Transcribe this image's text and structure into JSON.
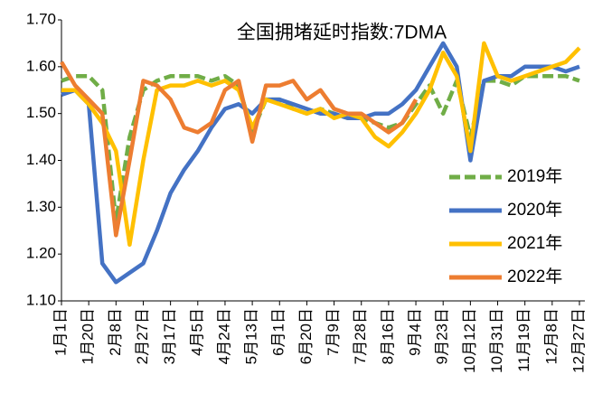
{
  "chart_data": {
    "type": "line",
    "title": "全国拥堵延时指数:7DMA",
    "categories": [
      "1月1日",
      null,
      "1月20日",
      null,
      "2月8日",
      null,
      "2月27日",
      null,
      "3月17日",
      null,
      "4月5日",
      null,
      "4月24日",
      null,
      "5月13日",
      null,
      "6月1日",
      null,
      "6月20日",
      null,
      "7月9日",
      null,
      "7月28日",
      null,
      "8月16日",
      null,
      "9月4日",
      null,
      "9月23日",
      null,
      "10月12日",
      null,
      "10月31日",
      null,
      "11月19日",
      null,
      "12月8日",
      null,
      "12月27日"
    ],
    "series": [
      {
        "name": "2019年",
        "color": "#70ad47",
        "line_style": "dashed",
        "values": [
          1.57,
          1.58,
          1.58,
          1.55,
          1.27,
          1.45,
          1.55,
          1.57,
          1.58,
          1.58,
          1.58,
          1.57,
          1.58,
          1.56,
          1.46,
          1.53,
          1.53,
          1.51,
          1.5,
          1.51,
          1.5,
          1.49,
          1.49,
          1.48,
          1.47,
          1.48,
          1.52,
          1.56,
          1.5,
          1.57,
          1.45,
          1.57,
          1.57,
          1.56,
          1.58,
          1.58,
          1.58,
          1.58,
          1.57
        ]
      },
      {
        "name": "2020年",
        "color": "#4472c4",
        "line_style": "solid",
        "values": [
          1.54,
          1.55,
          1.52,
          1.18,
          1.14,
          1.16,
          1.18,
          1.25,
          1.33,
          1.38,
          1.42,
          1.47,
          1.51,
          1.52,
          1.5,
          1.53,
          1.53,
          1.52,
          1.51,
          1.5,
          1.5,
          1.49,
          1.49,
          1.5,
          1.5,
          1.52,
          1.55,
          1.6,
          1.65,
          1.6,
          1.4,
          1.57,
          1.58,
          1.58,
          1.6,
          1.6,
          1.6,
          1.59,
          1.6
        ]
      },
      {
        "name": "2021年",
        "color": "#ffc000",
        "line_style": "solid",
        "values": [
          1.55,
          1.55,
          1.52,
          1.48,
          1.42,
          1.22,
          1.4,
          1.55,
          1.56,
          1.56,
          1.57,
          1.56,
          1.57,
          1.55,
          1.47,
          1.53,
          1.52,
          1.51,
          1.5,
          1.51,
          1.49,
          1.5,
          1.49,
          1.45,
          1.43,
          1.46,
          1.5,
          1.55,
          1.63,
          1.58,
          1.42,
          1.65,
          1.58,
          1.57,
          1.58,
          1.59,
          1.6,
          1.61,
          1.64
        ]
      },
      {
        "name": "2022年",
        "color": "#ed7d31",
        "line_style": "solid",
        "values": [
          1.61,
          1.56,
          1.53,
          1.5,
          1.24,
          1.4,
          1.57,
          1.56,
          1.53,
          1.47,
          1.46,
          1.48,
          1.55,
          1.57,
          1.44,
          1.56,
          1.56,
          1.57,
          1.53,
          1.55,
          1.51,
          1.5,
          1.5,
          1.48,
          1.46,
          1.48,
          1.53,
          null,
          null,
          null,
          null,
          null,
          null,
          null,
          null,
          null,
          null,
          null,
          null
        ]
      }
    ],
    "ylim": [
      1.1,
      1.7
    ],
    "yticks": [
      {
        "value": 1.1,
        "label": "1.10"
      },
      {
        "value": 1.2,
        "label": "1.20"
      },
      {
        "value": 1.3,
        "label": "1.30"
      },
      {
        "value": 1.4,
        "label": "1.40"
      },
      {
        "value": 1.5,
        "label": "1.50"
      },
      {
        "value": 1.6,
        "label": "1.60"
      },
      {
        "value": 1.7,
        "label": "1.70"
      }
    ],
    "grid": false,
    "legend": "lower right"
  }
}
